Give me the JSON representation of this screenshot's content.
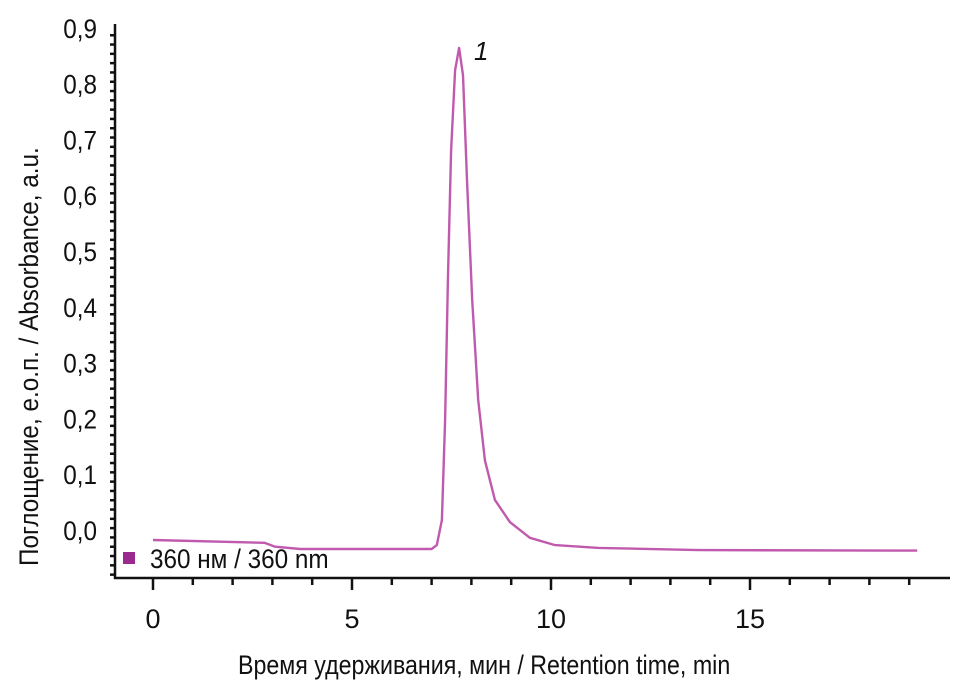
{
  "chart_data": {
    "type": "line",
    "title": "",
    "xlabel": "Время удерживания, мин / Retention time, min",
    "ylabel": "Поглощение, е.о.п. / Absorbance, a.u.",
    "xlim": [
      -0.95,
      20
    ],
    "ylim": [
      -0.086,
      0.9
    ],
    "x_ticks": [
      0,
      5,
      10,
      15
    ],
    "x_tick_labels": [
      "0",
      "5",
      "10",
      "15"
    ],
    "y_ticks": [
      0.0,
      0.1,
      0.2,
      0.3,
      0.4,
      0.5,
      0.6,
      0.7,
      0.8,
      0.9
    ],
    "y_tick_labels": [
      "0,0",
      "0,1",
      "0,2",
      "0,3",
      "0,4",
      "0,5",
      "0,6",
      "0,7",
      "0,8",
      "0,9"
    ],
    "grid": false,
    "legend_position": "bottom-left",
    "series": [
      {
        "name": "360 нм / 360 nm",
        "color": "#c05aae",
        "x": [
          0,
          2.8,
          3.07,
          3.7,
          7.0,
          7.13,
          7.26,
          7.34,
          7.41,
          7.49,
          7.59,
          7.69,
          7.79,
          7.89,
          8.02,
          8.17,
          8.34,
          8.59,
          8.97,
          9.47,
          10.1,
          11.2,
          13.7,
          19.2
        ],
        "y": [
          -0.018,
          -0.023,
          -0.03,
          -0.034,
          -0.034,
          -0.027,
          0.018,
          0.197,
          0.448,
          0.68,
          0.824,
          0.864,
          0.815,
          0.627,
          0.412,
          0.233,
          0.125,
          0.054,
          0.014,
          -0.014,
          -0.027,
          -0.032,
          -0.036,
          -0.037
        ]
      }
    ],
    "legend_marker_color": "#9b2a8e",
    "annotations": [
      {
        "text": "1",
        "x": 7.69,
        "y": 0.864
      }
    ]
  }
}
